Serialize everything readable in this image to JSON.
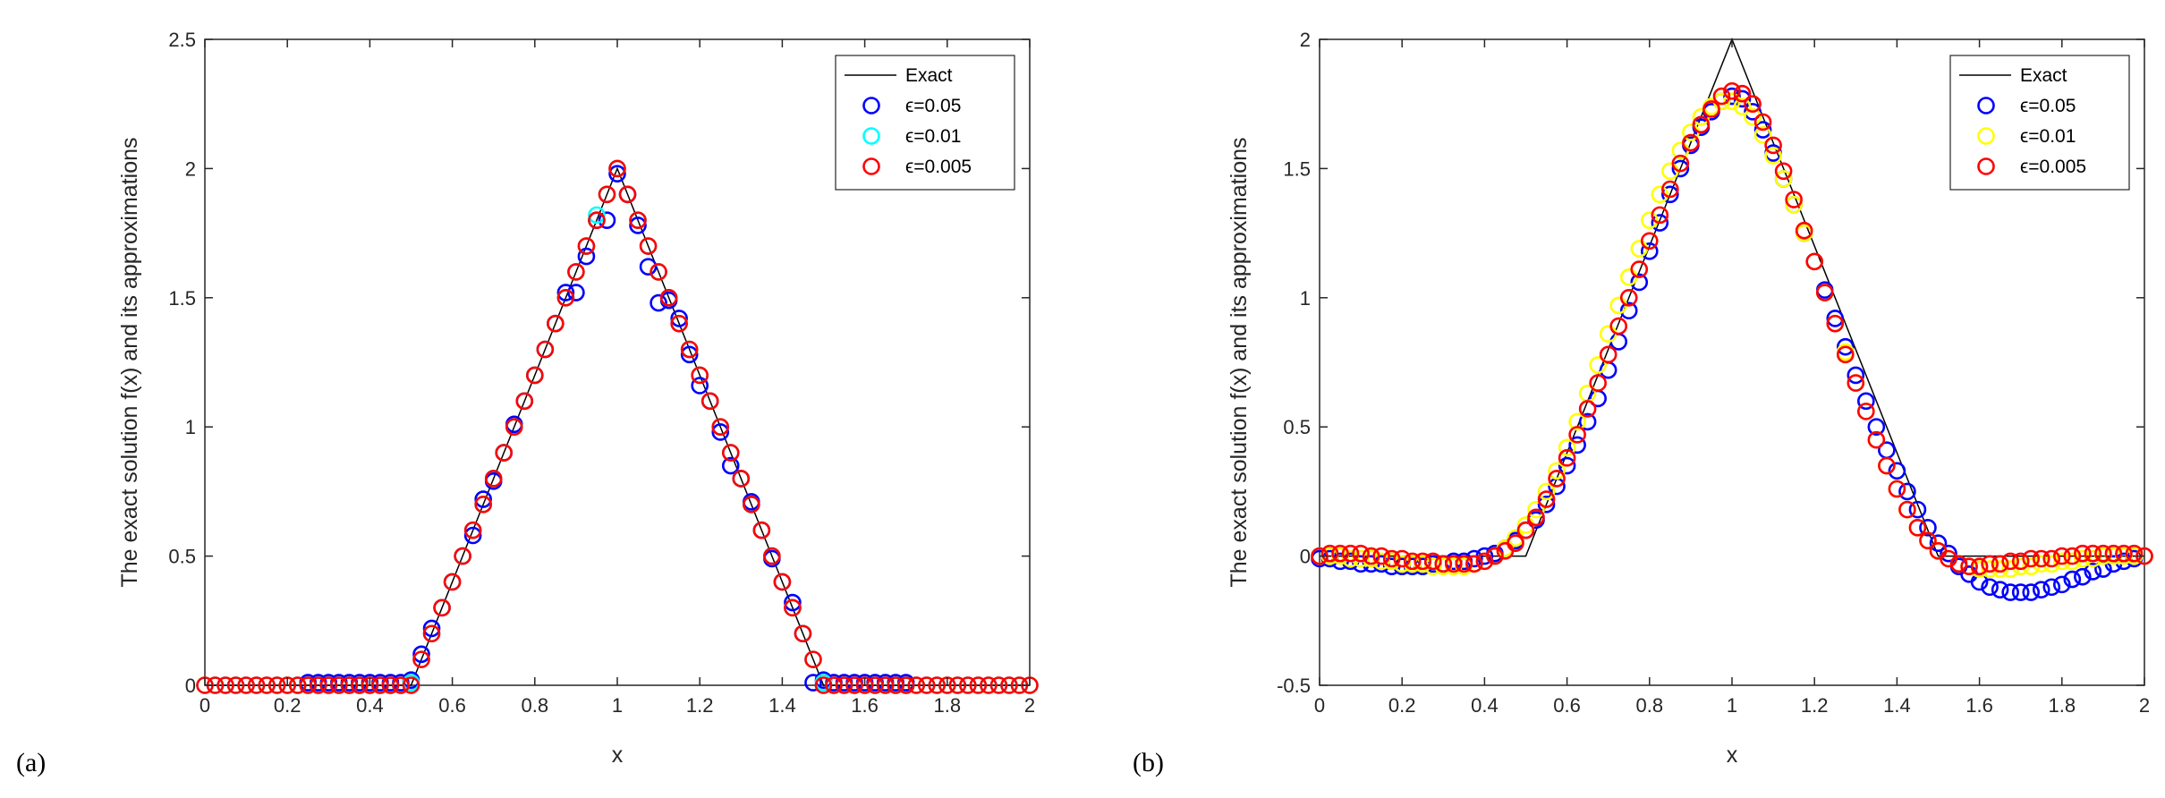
{
  "figure_labels": [
    "(a)",
    "(b)"
  ],
  "chart_data": [
    {
      "type": "line",
      "panel_label": "(a)",
      "title": "",
      "xlabel": "x",
      "ylabel": "The exact solution f(x) and its approximations",
      "xlim": [
        0,
        2
      ],
      "ylim": [
        0,
        2.5
      ],
      "xticks": [
        "0",
        "0.2",
        "0.4",
        "0.6",
        "0.8",
        "1",
        "1.2",
        "1.4",
        "1.6",
        "1.8",
        "2"
      ],
      "yticks": [
        "0",
        "0.5",
        "1",
        "1.5",
        "2",
        "2.5"
      ],
      "grid": false,
      "legend_position": "top-right",
      "series": [
        {
          "name": "Exact",
          "style": "line",
          "color": "#000000",
          "x": [
            0,
            0.5,
            1.0,
            1.5,
            2.0
          ],
          "y": [
            0,
            0,
            2.0,
            0,
            0
          ]
        },
        {
          "name": "ϵ=0.05",
          "style": "circle",
          "color": "#0000ff",
          "x": [
            0.25,
            0.275,
            0.3,
            0.325,
            0.35,
            0.375,
            0.4,
            0.425,
            0.45,
            0.475,
            0.5,
            0.525,
            0.55,
            0.575,
            0.6,
            0.625,
            0.65,
            0.675,
            0.7,
            0.725,
            0.75,
            0.775,
            0.8,
            0.825,
            0.85,
            0.875,
            0.9,
            0.925,
            0.95,
            0.975,
            1.0,
            1.025,
            1.05,
            1.075,
            1.1,
            1.125,
            1.15,
            1.175,
            1.2,
            1.225,
            1.25,
            1.275,
            1.3,
            1.325,
            1.35,
            1.375,
            1.4,
            1.425,
            1.45,
            1.475,
            1.5,
            1.525,
            1.55,
            1.575,
            1.6,
            1.625,
            1.65,
            1.675,
            1.7
          ],
          "y": [
            0.01,
            0.01,
            0.01,
            0.01,
            0.01,
            0.01,
            0.01,
            0.01,
            0.01,
            0.01,
            0.02,
            0.12,
            0.22,
            0.3,
            0.4,
            0.5,
            0.58,
            0.72,
            0.79,
            0.9,
            1.01,
            1.1,
            1.2,
            1.3,
            1.4,
            1.52,
            1.52,
            1.66,
            1.8,
            1.8,
            1.98,
            1.9,
            1.78,
            1.62,
            1.48,
            1.49,
            1.42,
            1.28,
            1.16,
            1.1,
            0.98,
            0.85,
            0.8,
            0.71,
            0.6,
            0.49,
            0.4,
            0.32,
            0.2,
            0.01,
            0.02,
            0.01,
            0.01,
            0.01,
            0.01,
            0.01,
            0.01,
            0.01,
            0.01
          ]
        },
        {
          "name": "ϵ=0.01",
          "style": "circle",
          "color": "#00ffff",
          "x": [
            0.0,
            0.025,
            0.05,
            0.075,
            0.1,
            0.125,
            0.15,
            0.175,
            0.2,
            0.225,
            0.25,
            0.275,
            0.3,
            0.325,
            0.35,
            0.375,
            0.4,
            0.425,
            0.45,
            0.475,
            0.5,
            0.525,
            0.55,
            0.575,
            0.6,
            0.625,
            0.65,
            0.675,
            0.7,
            0.725,
            0.75,
            0.775,
            0.8,
            0.825,
            0.85,
            0.875,
            0.9,
            0.925,
            0.95,
            0.975,
            1.0,
            1.025,
            1.05,
            1.075,
            1.1,
            1.125,
            1.15,
            1.175,
            1.2,
            1.225,
            1.25,
            1.275,
            1.3,
            1.325,
            1.35,
            1.375,
            1.4,
            1.425,
            1.45,
            1.475,
            1.5,
            1.525,
            1.55,
            1.575,
            1.6,
            1.625,
            1.65,
            1.675,
            1.7,
            1.725,
            1.75,
            1.775,
            1.8,
            1.825,
            1.85,
            1.875,
            1.9,
            1.925,
            1.95,
            1.975,
            2.0
          ],
          "y": [
            0,
            0,
            0,
            0,
            0,
            0,
            0,
            0,
            0,
            0,
            0,
            0,
            0,
            0,
            0,
            0,
            0,
            0,
            0,
            0,
            0.01,
            0.1,
            0.2,
            0.3,
            0.4,
            0.5,
            0.6,
            0.7,
            0.8,
            0.9,
            1.0,
            1.1,
            1.2,
            1.3,
            1.4,
            1.5,
            1.6,
            1.7,
            1.82,
            1.9,
            2.0,
            1.9,
            1.8,
            1.7,
            1.6,
            1.5,
            1.4,
            1.3,
            1.2,
            1.1,
            1.0,
            0.9,
            0.8,
            0.7,
            0.6,
            0.5,
            0.4,
            0.3,
            0.2,
            0.1,
            0.01,
            0,
            0,
            0,
            0,
            0,
            0,
            0,
            0,
            0,
            0,
            0,
            0,
            0,
            0,
            0,
            0,
            0,
            0,
            0,
            0
          ]
        },
        {
          "name": "ϵ=0.005",
          "style": "circle",
          "color": "#ff0000",
          "x": [
            0.0,
            0.025,
            0.05,
            0.075,
            0.1,
            0.125,
            0.15,
            0.175,
            0.2,
            0.225,
            0.25,
            0.275,
            0.3,
            0.325,
            0.35,
            0.375,
            0.4,
            0.425,
            0.45,
            0.475,
            0.5,
            0.525,
            0.55,
            0.575,
            0.6,
            0.625,
            0.65,
            0.675,
            0.7,
            0.725,
            0.75,
            0.775,
            0.8,
            0.825,
            0.85,
            0.875,
            0.9,
            0.925,
            0.95,
            0.975,
            1.0,
            1.025,
            1.05,
            1.075,
            1.1,
            1.125,
            1.15,
            1.175,
            1.2,
            1.225,
            1.25,
            1.275,
            1.3,
            1.325,
            1.35,
            1.375,
            1.4,
            1.425,
            1.45,
            1.475,
            1.5,
            1.525,
            1.55,
            1.575,
            1.6,
            1.625,
            1.65,
            1.675,
            1.7,
            1.725,
            1.75,
            1.775,
            1.8,
            1.825,
            1.85,
            1.875,
            1.9,
            1.925,
            1.95,
            1.975,
            2.0
          ],
          "y": [
            0,
            0,
            0,
            0,
            0,
            0,
            0,
            0,
            0,
            0,
            0,
            0,
            0,
            0,
            0,
            0,
            0,
            0,
            0,
            0,
            0,
            0.1,
            0.2,
            0.3,
            0.4,
            0.5,
            0.6,
            0.7,
            0.8,
            0.9,
            1.0,
            1.1,
            1.2,
            1.3,
            1.4,
            1.5,
            1.6,
            1.7,
            1.8,
            1.9,
            2.0,
            1.9,
            1.8,
            1.7,
            1.6,
            1.5,
            1.4,
            1.3,
            1.2,
            1.1,
            1.0,
            0.9,
            0.8,
            0.7,
            0.6,
            0.5,
            0.4,
            0.3,
            0.2,
            0.1,
            0,
            0,
            0,
            0,
            0,
            0,
            0,
            0,
            0,
            0,
            0,
            0,
            0,
            0,
            0,
            0,
            0,
            0,
            0,
            0,
            0
          ]
        }
      ]
    },
    {
      "type": "line",
      "panel_label": "(b)",
      "title": "",
      "xlabel": "x",
      "ylabel": "The exact solution f(x) and its approximations",
      "xlim": [
        0,
        2
      ],
      "ylim": [
        -0.5,
        2
      ],
      "xticks": [
        "0",
        "0.2",
        "0.4",
        "0.6",
        "0.8",
        "1",
        "1.2",
        "1.4",
        "1.6",
        "1.8",
        "2"
      ],
      "yticks": [
        "-0.5",
        "0",
        "0.5",
        "1",
        "1.5",
        "2"
      ],
      "grid": false,
      "legend_position": "top-right",
      "series": [
        {
          "name": "Exact",
          "style": "line",
          "color": "#000000",
          "x": [
            0,
            0.5,
            1.0,
            1.5,
            2.0
          ],
          "y": [
            0,
            0,
            2.0,
            0,
            0
          ]
        },
        {
          "name": "ϵ=0.05",
          "style": "circle",
          "color": "#0000ff",
          "x": [
            0.0,
            0.025,
            0.05,
            0.075,
            0.1,
            0.125,
            0.15,
            0.175,
            0.2,
            0.225,
            0.25,
            0.275,
            0.3,
            0.325,
            0.35,
            0.375,
            0.4,
            0.425,
            0.45,
            0.475,
            0.5,
            0.525,
            0.55,
            0.575,
            0.6,
            0.625,
            0.65,
            0.675,
            0.7,
            0.725,
            0.75,
            0.775,
            0.8,
            0.825,
            0.85,
            0.875,
            0.9,
            0.925,
            0.95,
            0.975,
            1.0,
            1.025,
            1.05,
            1.075,
            1.1,
            1.125,
            1.15,
            1.175,
            1.2,
            1.225,
            1.25,
            1.275,
            1.3,
            1.325,
            1.35,
            1.375,
            1.4,
            1.425,
            1.45,
            1.475,
            1.5,
            1.525,
            1.55,
            1.575,
            1.6,
            1.625,
            1.65,
            1.675,
            1.7,
            1.725,
            1.75,
            1.775,
            1.8,
            1.825,
            1.85,
            1.875,
            1.9,
            1.925,
            1.95,
            1.975,
            2.0
          ],
          "y": [
            -0.01,
            -0.01,
            -0.02,
            -0.02,
            -0.03,
            -0.03,
            -0.03,
            -0.04,
            -0.04,
            -0.04,
            -0.04,
            -0.03,
            -0.03,
            -0.02,
            -0.02,
            -0.01,
            0,
            0.01,
            0.03,
            0.06,
            0.1,
            0.14,
            0.2,
            0.27,
            0.35,
            0.43,
            0.52,
            0.61,
            0.72,
            0.83,
            0.95,
            1.06,
            1.18,
            1.29,
            1.4,
            1.5,
            1.59,
            1.66,
            1.72,
            1.76,
            1.78,
            1.77,
            1.72,
            1.65,
            1.56,
            1.46,
            1.36,
            1.25,
            1.14,
            1.03,
            0.92,
            0.81,
            0.7,
            0.6,
            0.5,
            0.41,
            0.33,
            0.25,
            0.18,
            0.11,
            0.05,
            0.01,
            -0.04,
            -0.07,
            -0.1,
            -0.12,
            -0.13,
            -0.14,
            -0.14,
            -0.14,
            -0.13,
            -0.12,
            -0.11,
            -0.09,
            -0.08,
            -0.06,
            -0.05,
            -0.03,
            -0.02,
            -0.01,
            0
          ]
        },
        {
          "name": "ϵ=0.01",
          "style": "circle",
          "color": "#ffff00",
          "x": [
            0.0,
            0.025,
            0.05,
            0.075,
            0.1,
            0.125,
            0.15,
            0.175,
            0.2,
            0.225,
            0.25,
            0.275,
            0.3,
            0.325,
            0.35,
            0.375,
            0.4,
            0.425,
            0.45,
            0.475,
            0.5,
            0.525,
            0.55,
            0.575,
            0.6,
            0.625,
            0.65,
            0.675,
            0.7,
            0.725,
            0.75,
            0.775,
            0.8,
            0.825,
            0.85,
            0.875,
            0.9,
            0.925,
            0.95,
            0.975,
            1.0,
            1.025,
            1.05,
            1.075,
            1.1,
            1.125,
            1.15,
            1.175,
            1.2,
            1.225,
            1.25,
            1.275,
            1.3,
            1.325,
            1.35,
            1.375,
            1.4,
            1.425,
            1.45,
            1.475,
            1.5,
            1.525,
            1.55,
            1.575,
            1.6,
            1.625,
            1.65,
            1.675,
            1.7,
            1.725,
            1.75,
            1.775,
            1.8,
            1.825,
            1.85,
            1.875,
            1.9,
            1.925,
            1.95,
            1.975,
            2.0
          ],
          "y": [
            0,
            0,
            0,
            -0.01,
            -0.01,
            -0.01,
            -0.02,
            -0.02,
            -0.03,
            -0.03,
            -0.03,
            -0.04,
            -0.04,
            -0.04,
            -0.04,
            -0.03,
            -0.02,
            0,
            0.03,
            0.07,
            0.12,
            0.18,
            0.25,
            0.33,
            0.42,
            0.52,
            0.63,
            0.74,
            0.86,
            0.97,
            1.08,
            1.19,
            1.3,
            1.4,
            1.49,
            1.57,
            1.64,
            1.7,
            1.74,
            1.76,
            1.76,
            1.74,
            1.7,
            1.63,
            1.55,
            1.46,
            1.36,
            1.25,
            1.14,
            1.02,
            0.9,
            0.79,
            0.67,
            0.56,
            0.45,
            0.35,
            0.26,
            0.18,
            0.11,
            0.06,
            0.02,
            -0.01,
            -0.03,
            -0.04,
            -0.05,
            -0.05,
            -0.05,
            -0.05,
            -0.04,
            -0.04,
            -0.03,
            -0.03,
            -0.02,
            -0.02,
            -0.01,
            -0.01,
            0,
            0,
            0,
            0,
            0
          ]
        },
        {
          "name": "ϵ=0.005",
          "style": "circle",
          "color": "#ff0000",
          "x": [
            0.0,
            0.025,
            0.05,
            0.075,
            0.1,
            0.125,
            0.15,
            0.175,
            0.2,
            0.225,
            0.25,
            0.275,
            0.3,
            0.325,
            0.35,
            0.375,
            0.4,
            0.425,
            0.45,
            0.475,
            0.5,
            0.525,
            0.55,
            0.575,
            0.6,
            0.625,
            0.65,
            0.675,
            0.7,
            0.725,
            0.75,
            0.775,
            0.8,
            0.825,
            0.85,
            0.875,
            0.9,
            0.925,
            0.95,
            0.975,
            1.0,
            1.025,
            1.05,
            1.075,
            1.1,
            1.125,
            1.15,
            1.175,
            1.2,
            1.225,
            1.25,
            1.275,
            1.3,
            1.325,
            1.35,
            1.375,
            1.4,
            1.425,
            1.45,
            1.475,
            1.5,
            1.525,
            1.55,
            1.575,
            1.6,
            1.625,
            1.65,
            1.675,
            1.7,
            1.725,
            1.75,
            1.775,
            1.8,
            1.825,
            1.85,
            1.875,
            1.9,
            1.925,
            1.95,
            1.975,
            2.0
          ],
          "y": [
            0,
            0.01,
            0.01,
            0.01,
            0.01,
            0,
            0,
            -0.01,
            -0.01,
            -0.02,
            -0.02,
            -0.02,
            -0.03,
            -0.03,
            -0.03,
            -0.03,
            -0.02,
            0,
            0.02,
            0.05,
            0.1,
            0.15,
            0.22,
            0.3,
            0.38,
            0.47,
            0.57,
            0.67,
            0.78,
            0.89,
            1.0,
            1.11,
            1.22,
            1.32,
            1.42,
            1.52,
            1.6,
            1.67,
            1.73,
            1.78,
            1.8,
            1.79,
            1.75,
            1.68,
            1.59,
            1.49,
            1.38,
            1.26,
            1.14,
            1.02,
            0.9,
            0.78,
            0.67,
            0.56,
            0.45,
            0.35,
            0.26,
            0.18,
            0.11,
            0.06,
            0.02,
            -0.01,
            -0.03,
            -0.04,
            -0.04,
            -0.03,
            -0.03,
            -0.02,
            -0.02,
            -0.01,
            -0.01,
            -0.01,
            0,
            0,
            0.01,
            0.01,
            0.01,
            0.01,
            0.01,
            0.01,
            0
          ]
        }
      ]
    }
  ]
}
